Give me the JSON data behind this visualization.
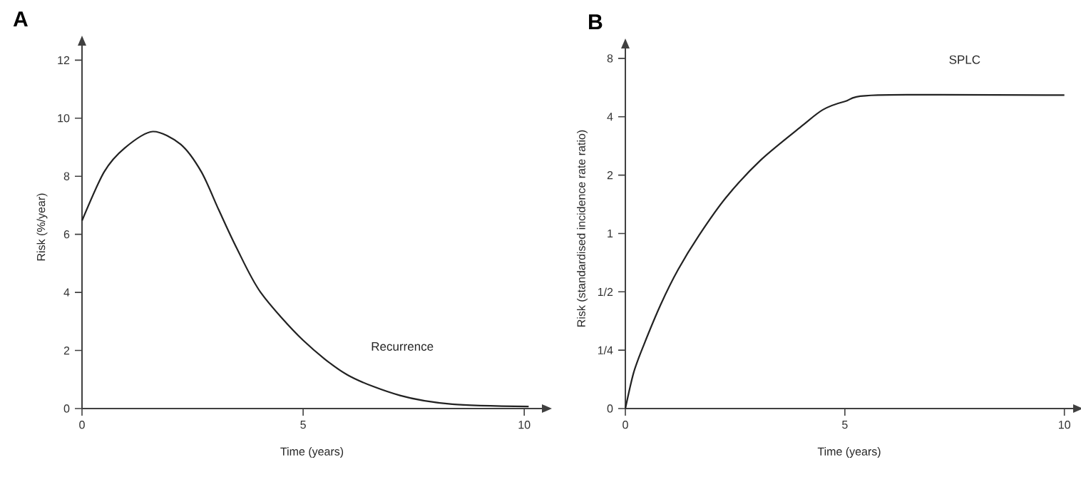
{
  "chart_data": [
    {
      "type": "line",
      "title": "A",
      "xlabel": "Time (years)",
      "ylabel": "Risk (%/year)",
      "xlim": [
        0,
        10.4
      ],
      "ylim": [
        0,
        12.5
      ],
      "xticks": [
        0,
        5,
        10
      ],
      "yticks": [
        0,
        2,
        4,
        6,
        8,
        10,
        12
      ],
      "grid": false,
      "legend": false,
      "marker": "none",
      "line_style": "solid",
      "series": [
        {
          "name": "Recurrence",
          "color": "#222222",
          "x": [
            0,
            0.5,
            0.97,
            1.6,
            2.23,
            2.7,
            3.09,
            3.49,
            4.04,
            5,
            6,
            7.19,
            8.37,
            10.1
          ],
          "values": [
            6.47,
            8.15,
            8.98,
            9.54,
            9.1,
            8.15,
            6.85,
            5.55,
            4.0,
            2.35,
            1.16,
            0.45,
            0.15,
            0.07
          ]
        }
      ]
    },
    {
      "type": "line",
      "title": "B",
      "xlabel": "Time (years)",
      "ylabel": "Risk (standardised incidence rate ratio)",
      "xlim": [
        0,
        10.2
      ],
      "ylim": [
        0.125,
        9
      ],
      "log": "y",
      "xticks": [
        0,
        5,
        10
      ],
      "yticks": [
        {
          "value": 0.125,
          "label": "0"
        },
        {
          "value": 0.25,
          "label": "1/4"
        },
        {
          "value": 0.5,
          "label": "1/2"
        },
        1,
        2,
        4,
        8
      ],
      "grid": false,
      "legend": false,
      "marker": "none",
      "line_style": "solid",
      "series": [
        {
          "name": "SPLC",
          "color": "#222222",
          "x": [
            0,
            0.19,
            0.42,
            0.81,
            1.2,
            1.68,
            2.3,
            3.09,
            4.03,
            4.5,
            5,
            5.75,
            10
          ],
          "values": [
            0.125,
            0.192,
            0.266,
            0.432,
            0.65,
            0.98,
            1.54,
            2.4,
            3.6,
            4.35,
            4.8,
            5.17,
            5.17
          ]
        }
      ]
    }
  ]
}
